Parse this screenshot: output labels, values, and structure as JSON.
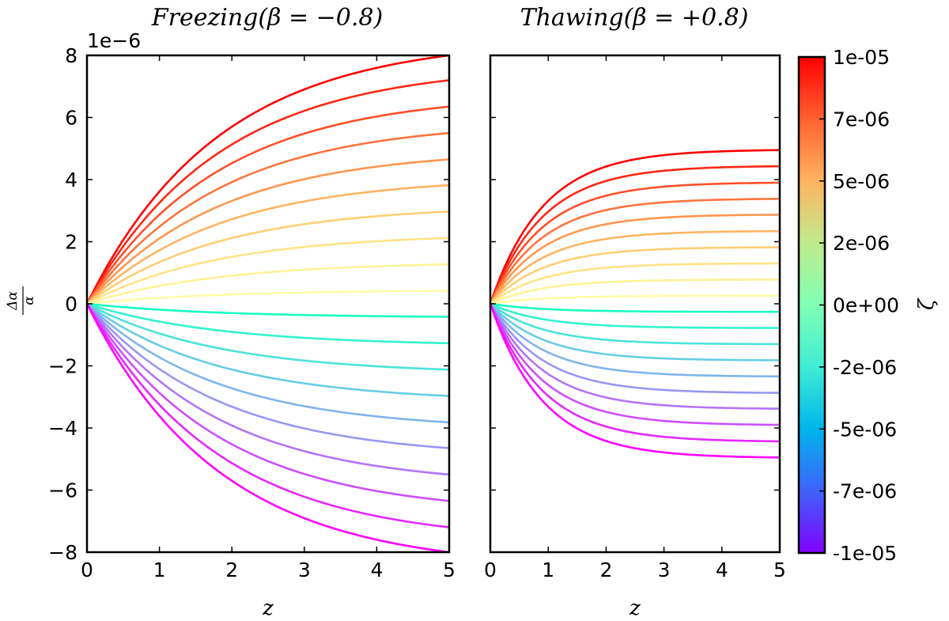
{
  "chart_data": [
    {
      "type": "line",
      "title": "Freezing(β = −0.8)",
      "xlabel": "z",
      "ylabel": "Δα/α",
      "y_offset_text": "1e−6",
      "xlim": [
        0,
        5
      ],
      "ylim": [
        -8,
        8
      ],
      "x_ticks": [
        "0",
        "1",
        "2",
        "3",
        "4",
        "5"
      ],
      "y_ticks": [
        "−8",
        "−6",
        "−4",
        "−2",
        "0",
        "2",
        "4",
        "6",
        "8"
      ],
      "series_end_values": [
        8.0,
        7.2,
        6.35,
        5.5,
        4.65,
        3.82,
        2.97,
        2.12,
        1.27,
        0.42,
        -0.42,
        -1.27,
        -2.12,
        -2.97,
        -3.82,
        -4.65,
        -5.5,
        -6.35,
        -7.2,
        -8.0
      ],
      "series_zeta": [
        1e-05,
        9e-06,
        8e-06,
        7e-06,
        6e-06,
        5e-06,
        4e-06,
        3e-06,
        2e-06,
        1e-06,
        -1e-06,
        -2e-06,
        -3e-06,
        -4e-06,
        -5e-06,
        -6e-06,
        -7e-06,
        -8e-06,
        -9e-06,
        -1e-05
      ],
      "curve_shape": "freezing",
      "grid": false
    },
    {
      "type": "line",
      "title": "Thawing(β = +0.8)",
      "xlabel": "z",
      "xlim": [
        0,
        5
      ],
      "ylim": [
        -8,
        8
      ],
      "x_ticks": [
        "0",
        "1",
        "2",
        "3",
        "4",
        "5"
      ],
      "series_end_values": [
        4.95,
        4.43,
        3.9,
        3.38,
        2.87,
        2.34,
        1.82,
        1.3,
        0.78,
        0.26,
        -0.26,
        -0.78,
        -1.3,
        -1.82,
        -2.34,
        -2.87,
        -3.38,
        -3.9,
        -4.43,
        -4.95
      ],
      "series_zeta": [
        1e-05,
        9e-06,
        8e-06,
        7e-06,
        6e-06,
        5e-06,
        4e-06,
        3e-06,
        2e-06,
        1e-06,
        -1e-06,
        -2e-06,
        -3e-06,
        -4e-06,
        -5e-06,
        -6e-06,
        -7e-06,
        -8e-06,
        -9e-06,
        -1e-05
      ],
      "curve_shape": "thawing",
      "grid": false
    }
  ],
  "colorbar": {
    "label": "ζ",
    "range": [
      -1e-05,
      1e-05
    ],
    "colormap": "rainbow",
    "ticks": [
      "1e-05",
      "7e-06",
      "5e-06",
      "2e-06",
      "0e+00",
      "-2e-06",
      "-5e-06",
      "-7e-06",
      "-1e-05"
    ],
    "tick_values": [
      1e-05,
      7.5e-06,
      5e-06,
      2.5e-06,
      0,
      -2.5e-06,
      -5e-06,
      -7.5e-06,
      -1e-05
    ]
  }
}
